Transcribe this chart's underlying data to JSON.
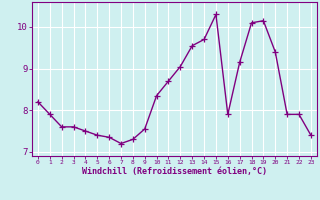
{
  "x": [
    0,
    1,
    2,
    3,
    4,
    5,
    6,
    7,
    8,
    9,
    10,
    11,
    12,
    13,
    14,
    15,
    16,
    17,
    18,
    19,
    20,
    21,
    22,
    23
  ],
  "y": [
    8.2,
    7.9,
    7.6,
    7.6,
    7.5,
    7.4,
    7.35,
    7.2,
    7.3,
    7.55,
    8.35,
    8.7,
    9.05,
    9.55,
    9.7,
    10.3,
    7.9,
    9.15,
    10.1,
    10.15,
    9.4,
    7.9,
    7.9,
    7.4
  ],
  "line_color": "#800080",
  "marker": "+",
  "marker_size": 4,
  "bg_color": "#cff0f0",
  "grid_color": "#ffffff",
  "xlabel": "Windchill (Refroidissement éolien,°C)",
  "xlabel_color": "#800080",
  "tick_color": "#800080",
  "axis_color": "#800080",
  "ylim": [
    6.9,
    10.6
  ],
  "xlim": [
    -0.5,
    23.5
  ],
  "yticks": [
    7,
    8,
    9,
    10
  ],
  "xticks": [
    0,
    1,
    2,
    3,
    4,
    5,
    6,
    7,
    8,
    9,
    10,
    11,
    12,
    13,
    14,
    15,
    16,
    17,
    18,
    19,
    20,
    21,
    22,
    23
  ]
}
